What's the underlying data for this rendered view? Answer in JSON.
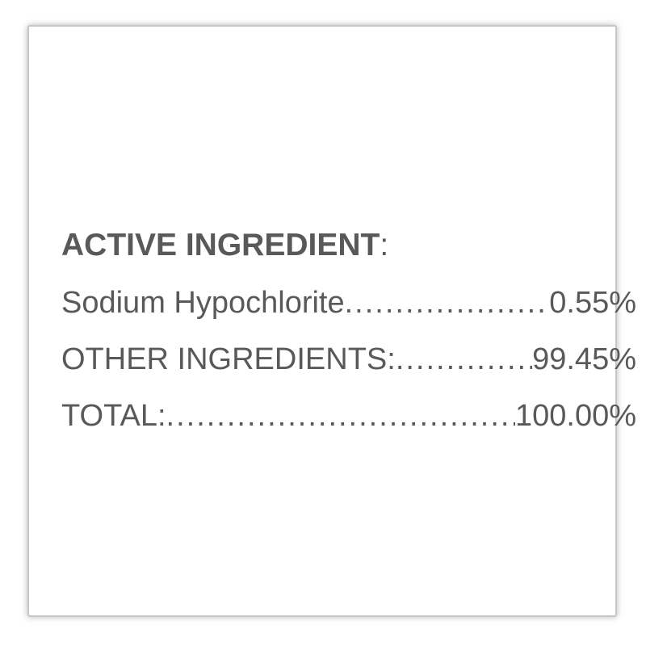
{
  "card": {
    "heading": {
      "text": "ACTIVE INGREDIENT",
      "colon": ":"
    },
    "rows": [
      {
        "label": "Sodium Hypochlorite",
        "value": "0.55%"
      },
      {
        "label": "OTHER INGREDIENTS:",
        "value": "99.45%"
      },
      {
        "label": "TOTAL:",
        "value": "100.00%"
      }
    ],
    "colors": {
      "text": "#58595b",
      "border": "#c6c7ca"
    }
  }
}
